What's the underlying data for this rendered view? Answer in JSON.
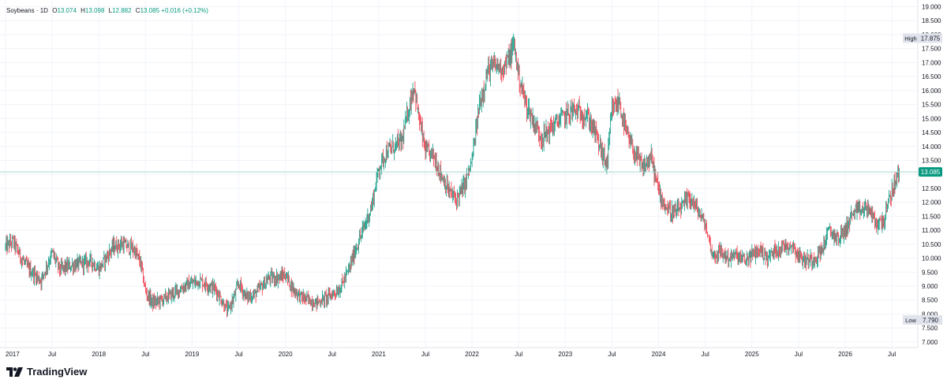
{
  "legend": {
    "symbol": "Soybeans",
    "sep": "·",
    "interval": "1D",
    "o_label": "O",
    "o_value": "13.074",
    "h_label": "H",
    "h_value": "13.098",
    "l_label": "L",
    "l_value": "12.882",
    "c_label": "C",
    "c_value": "13.085",
    "change": "+0.016 (+0.12%)"
  },
  "brand": {
    "name": "TradingView",
    "logo": "tradingview-logo"
  },
  "colors": {
    "up": "#089981",
    "down": "#f23645",
    "last_line": "#a8d8cf",
    "grid": "#f0f3fa",
    "axis_text": "#131722"
  },
  "chart_data": {
    "type": "candlestick",
    "title": "Soybeans · 1D",
    "timeframe": "1D",
    "x_range": [
      "2017-01",
      "2026-10"
    ],
    "ylim": [
      7.0,
      19.0
    ],
    "y_ticks": [
      "7.000",
      "7.500",
      "8.000",
      "8.500",
      "9.000",
      "9.500",
      "10.000",
      "10.500",
      "11.000",
      "11.500",
      "12.000",
      "12.500",
      "13.000",
      "13.500",
      "14.000",
      "14.500",
      "15.000",
      "15.500",
      "16.000",
      "16.500",
      "17.000",
      "17.500",
      "18.000",
      "18.500",
      "19.000"
    ],
    "x_ticks": [
      {
        "t": 2017.0,
        "label": "2017"
      },
      {
        "t": 2017.5,
        "label": "Jul"
      },
      {
        "t": 2018.0,
        "label": "2018"
      },
      {
        "t": 2018.5,
        "label": "Jul"
      },
      {
        "t": 2019.0,
        "label": "2019"
      },
      {
        "t": 2019.5,
        "label": "Jul"
      },
      {
        "t": 2020.0,
        "label": "2020"
      },
      {
        "t": 2020.5,
        "label": "Jul"
      },
      {
        "t": 2021.0,
        "label": "2021"
      },
      {
        "t": 2021.5,
        "label": "Jul"
      },
      {
        "t": 2022.0,
        "label": "2022"
      },
      {
        "t": 2022.5,
        "label": "Jul"
      },
      {
        "t": 2023.0,
        "label": "2023"
      },
      {
        "t": 2023.5,
        "label": "Jul"
      },
      {
        "t": 2024.0,
        "label": "2024"
      },
      {
        "t": 2024.5,
        "label": "Jul"
      },
      {
        "t": 2025.0,
        "label": "2025"
      },
      {
        "t": 2025.5,
        "label": "Jul"
      },
      {
        "t": 2026.0,
        "label": "2026"
      },
      {
        "t": 2026.5,
        "label": "Jul"
      }
    ],
    "last_price": {
      "label": "13.085",
      "value": 13.085
    },
    "high_marker": {
      "label": "High",
      "value_label": "17.875",
      "value": 17.875
    },
    "low_marker": {
      "label": "Low",
      "value_label": "7.790",
      "value": 7.79
    },
    "path_points": [
      [
        2017.0,
        10.4
      ],
      [
        2017.08,
        10.6
      ],
      [
        2017.17,
        10.0
      ],
      [
        2017.25,
        9.6
      ],
      [
        2017.38,
        9.2
      ],
      [
        2017.5,
        10.2
      ],
      [
        2017.58,
        9.6
      ],
      [
        2017.67,
        9.7
      ],
      [
        2017.8,
        9.8
      ],
      [
        2017.92,
        9.9
      ],
      [
        2018.0,
        9.6
      ],
      [
        2018.15,
        10.4
      ],
      [
        2018.25,
        10.5
      ],
      [
        2018.38,
        10.3
      ],
      [
        2018.45,
        9.8
      ],
      [
        2018.5,
        8.8
      ],
      [
        2018.58,
        8.4
      ],
      [
        2018.67,
        8.5
      ],
      [
        2018.83,
        8.8
      ],
      [
        2018.92,
        9.0
      ],
      [
        2019.08,
        9.2
      ],
      [
        2019.25,
        8.9
      ],
      [
        2019.33,
        8.4
      ],
      [
        2019.38,
        8.1
      ],
      [
        2019.45,
        8.6
      ],
      [
        2019.5,
        9.1
      ],
      [
        2019.58,
        8.6
      ],
      [
        2019.67,
        8.7
      ],
      [
        2019.83,
        9.3
      ],
      [
        2019.92,
        9.3
      ],
      [
        2020.0,
        9.4
      ],
      [
        2020.08,
        8.9
      ],
      [
        2020.17,
        8.6
      ],
      [
        2020.25,
        8.5
      ],
      [
        2020.33,
        8.4
      ],
      [
        2020.45,
        8.6
      ],
      [
        2020.58,
        8.9
      ],
      [
        2020.67,
        9.5
      ],
      [
        2020.75,
        10.3
      ],
      [
        2020.83,
        11.0
      ],
      [
        2020.92,
        11.8
      ],
      [
        2021.0,
        13.2
      ],
      [
        2021.08,
        13.8
      ],
      [
        2021.17,
        14.0
      ],
      [
        2021.25,
        14.2
      ],
      [
        2021.33,
        15.5
      ],
      [
        2021.38,
        16.2
      ],
      [
        2021.42,
        15.2
      ],
      [
        2021.5,
        13.8
      ],
      [
        2021.58,
        13.7
      ],
      [
        2021.67,
        13.0
      ],
      [
        2021.75,
        12.4
      ],
      [
        2021.83,
        12.1
      ],
      [
        2021.92,
        12.6
      ],
      [
        2022.0,
        13.5
      ],
      [
        2022.08,
        15.5
      ],
      [
        2022.17,
        16.7
      ],
      [
        2022.25,
        16.9
      ],
      [
        2022.33,
        16.8
      ],
      [
        2022.42,
        17.3
      ],
      [
        2022.45,
        17.7
      ],
      [
        2022.5,
        16.5
      ],
      [
        2022.58,
        15.5
      ],
      [
        2022.67,
        14.8
      ],
      [
        2022.75,
        14.3
      ],
      [
        2022.83,
        14.6
      ],
      [
        2022.92,
        14.9
      ],
      [
        2023.0,
        15.1
      ],
      [
        2023.08,
        15.3
      ],
      [
        2023.17,
        15.2
      ],
      [
        2023.25,
        15.0
      ],
      [
        2023.33,
        14.4
      ],
      [
        2023.42,
        13.5
      ],
      [
        2023.45,
        13.4
      ],
      [
        2023.5,
        15.3
      ],
      [
        2023.58,
        15.6
      ],
      [
        2023.62,
        14.9
      ],
      [
        2023.67,
        14.3
      ],
      [
        2023.75,
        13.7
      ],
      [
        2023.83,
        13.2
      ],
      [
        2023.92,
        13.6
      ],
      [
        2024.0,
        12.4
      ],
      [
        2024.08,
        11.8
      ],
      [
        2024.17,
        11.6
      ],
      [
        2024.25,
        11.8
      ],
      [
        2024.33,
        12.2
      ],
      [
        2024.42,
        11.7
      ],
      [
        2024.5,
        11.2
      ],
      [
        2024.58,
        10.1
      ],
      [
        2024.67,
        10.2
      ],
      [
        2024.75,
        10.0
      ],
      [
        2024.83,
        10.1
      ],
      [
        2024.92,
        9.9
      ],
      [
        2025.0,
        10.1
      ],
      [
        2025.08,
        10.3
      ],
      [
        2025.17,
        10.0
      ],
      [
        2025.25,
        10.3
      ],
      [
        2025.33,
        10.4
      ],
      [
        2025.42,
        10.5
      ],
      [
        2025.5,
        10.1
      ],
      [
        2025.58,
        9.9
      ],
      [
        2025.67,
        10.0
      ],
      [
        2025.75,
        10.3
      ],
      [
        2025.83,
        11.0
      ],
      [
        2025.92,
        10.7
      ],
      [
        2026.0,
        11.0
      ],
      [
        2026.08,
        11.6
      ],
      [
        2026.17,
        11.7
      ],
      [
        2026.25,
        11.8
      ],
      [
        2026.33,
        11.2
      ],
      [
        2026.42,
        11.4
      ],
      [
        2026.5,
        12.4
      ],
      [
        2026.58,
        13.085
      ]
    ]
  }
}
